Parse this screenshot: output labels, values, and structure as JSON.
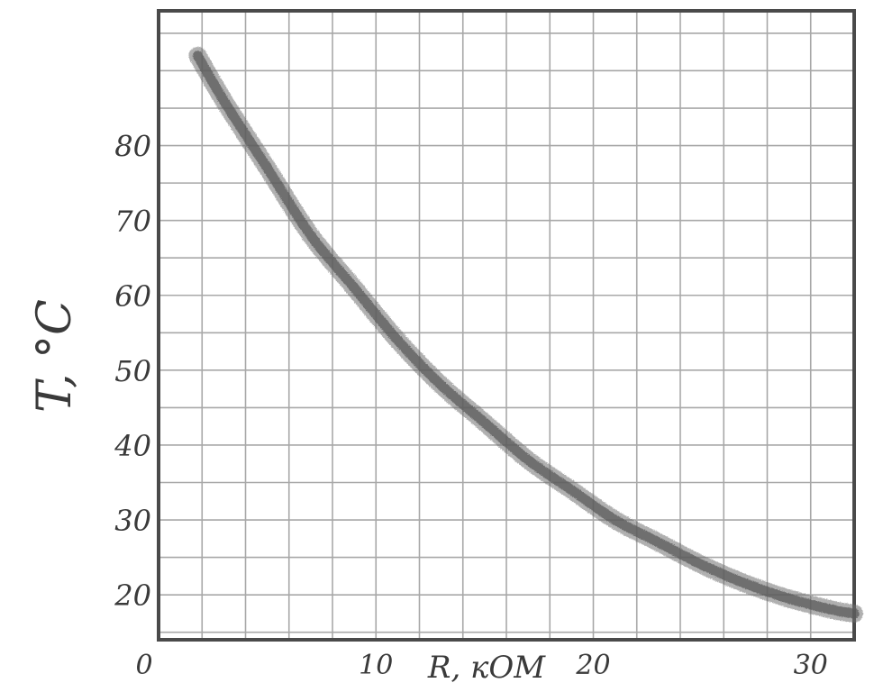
{
  "chart_data": {
    "type": "line",
    "title": "",
    "xlabel": "R, кОМ",
    "ylabel": "T, °C",
    "xlim": [
      0,
      32
    ],
    "ylim": [
      14,
      98
    ],
    "grid": true,
    "x_ticks": [
      {
        "value": 0,
        "label": "0"
      },
      {
        "value": 10,
        "label": "10"
      },
      {
        "value": 20,
        "label": "20"
      },
      {
        "value": 30,
        "label": "30"
      }
    ],
    "y_ticks": [
      {
        "value": 20,
        "label": "20"
      },
      {
        "value": 30,
        "label": "30"
      },
      {
        "value": 40,
        "label": "40"
      },
      {
        "value": 50,
        "label": "50"
      },
      {
        "value": 60,
        "label": "60"
      },
      {
        "value": 70,
        "label": "70"
      },
      {
        "value": 80,
        "label": "80"
      }
    ],
    "series": [
      {
        "x": [
          1.8,
          3,
          5,
          7,
          9,
          11,
          13,
          15,
          17,
          19,
          21,
          23,
          25,
          27,
          29,
          31,
          32
        ],
        "y": [
          92,
          86,
          77,
          68,
          61,
          54,
          48,
          43,
          38,
          34,
          30,
          27,
          24,
          21.5,
          19.5,
          18,
          17.5
        ]
      }
    ],
    "colors": {
      "curve": "#6f6f6f",
      "grid": "#a8a8a8",
      "frame": "#4a4a4a",
      "text": "#3a3a3a"
    }
  }
}
